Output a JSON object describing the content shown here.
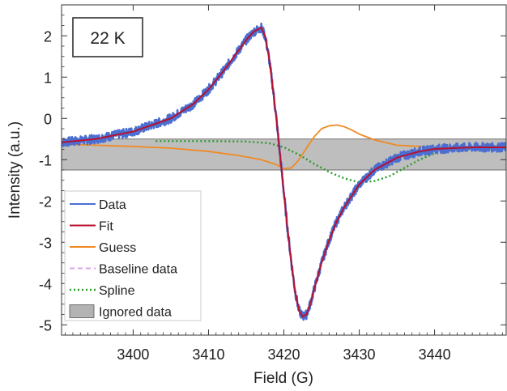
{
  "chart_data": {
    "type": "line",
    "title": "",
    "annotation": "22 K",
    "xlabel": "Field (G)",
    "ylabel": "Intensity (a.u.)",
    "xlim": [
      3390.5,
      3449.5
    ],
    "ylim": [
      -5.25,
      2.75
    ],
    "x_ticks": [
      3400,
      3410,
      3420,
      3430,
      3440
    ],
    "y_ticks": [
      2,
      1,
      0,
      -1,
      -2,
      -3,
      -4,
      -5
    ],
    "x_tick_labels": [
      "3400",
      "3410",
      "3420",
      "3430",
      "3440"
    ],
    "y_tick_labels": [
      "2",
      "1",
      "0",
      "-1",
      "-2",
      "-3",
      "-4",
      "-5"
    ],
    "legend_position": "bottom-left",
    "ignored_band": {
      "y_range": [
        -1.25,
        -0.5
      ],
      "color": "#b3b3b3"
    },
    "series": [
      {
        "name": "Data",
        "color": "#4a6fd1",
        "style": "noisy",
        "x": [
          3390.5,
          3395,
          3400,
          3405,
          3408,
          3410,
          3412,
          3414,
          3415,
          3416,
          3417,
          3417.5,
          3418,
          3418.5,
          3419,
          3419.5,
          3420,
          3420.5,
          3421,
          3421.5,
          3422,
          3422.5,
          3423,
          3423.5,
          3424,
          3425,
          3426,
          3427,
          3428,
          3430,
          3432,
          3435,
          3438,
          3440,
          3445,
          3449.5
        ],
        "y": [
          -0.58,
          -0.5,
          -0.32,
          0.0,
          0.35,
          0.7,
          1.15,
          1.65,
          1.9,
          2.1,
          2.2,
          2.0,
          1.5,
          0.8,
          0.0,
          -0.9,
          -1.8,
          -2.7,
          -3.5,
          -4.2,
          -4.65,
          -4.8,
          -4.75,
          -4.5,
          -4.15,
          -3.5,
          -2.95,
          -2.5,
          -2.15,
          -1.6,
          -1.25,
          -0.95,
          -0.8,
          -0.74,
          -0.7,
          -0.7
        ]
      },
      {
        "name": "Fit",
        "color": "#b8102e",
        "style": "solid",
        "x": [
          3390.5,
          3395,
          3400,
          3405,
          3408,
          3410,
          3412,
          3414,
          3415,
          3416,
          3417,
          3417.5,
          3418,
          3418.5,
          3419,
          3419.5,
          3420,
          3420.5,
          3421,
          3421.5,
          3422,
          3422.5,
          3423,
          3423.5,
          3424,
          3425,
          3426,
          3427,
          3428,
          3430,
          3432,
          3435,
          3438,
          3440,
          3445,
          3449.5
        ],
        "y": [
          -0.58,
          -0.5,
          -0.32,
          0.0,
          0.35,
          0.7,
          1.15,
          1.65,
          1.9,
          2.1,
          2.2,
          2.0,
          1.5,
          0.8,
          0.0,
          -0.9,
          -1.8,
          -2.7,
          -3.5,
          -4.2,
          -4.65,
          -4.8,
          -4.75,
          -4.5,
          -4.15,
          -3.5,
          -2.95,
          -2.5,
          -2.15,
          -1.6,
          -1.25,
          -0.95,
          -0.8,
          -0.74,
          -0.7,
          -0.7
        ]
      },
      {
        "name": "Guess",
        "color": "#f08a24",
        "style": "solid",
        "x": [
          3390.5,
          3395,
          3400,
          3405,
          3410,
          3414,
          3417,
          3419,
          3420,
          3421,
          3422,
          3423,
          3424,
          3425,
          3426,
          3427,
          3428,
          3429,
          3430,
          3432,
          3435,
          3440,
          3449.5
        ],
        "y": [
          -0.62,
          -0.65,
          -0.68,
          -0.72,
          -0.8,
          -0.9,
          -1.0,
          -1.12,
          -1.22,
          -1.2,
          -1.0,
          -0.72,
          -0.45,
          -0.25,
          -0.18,
          -0.16,
          -0.2,
          -0.28,
          -0.38,
          -0.52,
          -0.65,
          -0.7,
          -0.72
        ]
      },
      {
        "name": "Baseline data",
        "color": "#d8a6e6",
        "style": "dashed",
        "x": [],
        "y": []
      },
      {
        "name": "Spline",
        "color": "#2b9b2b",
        "style": "dotted",
        "x": [
          3403,
          3405,
          3410,
          3415,
          3418,
          3420,
          3422,
          3424,
          3426,
          3428,
          3430,
          3432,
          3434,
          3436,
          3438,
          3440,
          3443,
          3446,
          3449.5
        ],
        "y": [
          -0.55,
          -0.55,
          -0.55,
          -0.56,
          -0.6,
          -0.7,
          -0.88,
          -1.1,
          -1.3,
          -1.45,
          -1.55,
          -1.52,
          -1.4,
          -1.2,
          -1.0,
          -0.85,
          -0.74,
          -0.72,
          -0.7
        ]
      }
    ],
    "legend": [
      {
        "label": "Data",
        "color": "#4a6fd1",
        "kind": "line"
      },
      {
        "label": "Fit",
        "color": "#b8102e",
        "kind": "line"
      },
      {
        "label": "Guess",
        "color": "#f08a24",
        "kind": "line"
      },
      {
        "label": "Baseline data",
        "color": "#d8a6e6",
        "kind": "dashed"
      },
      {
        "label": "Spline",
        "color": "#2b9b2b",
        "kind": "dotted"
      },
      {
        "label": "Ignored data",
        "color": "#b3b3b3",
        "kind": "box"
      }
    ]
  }
}
